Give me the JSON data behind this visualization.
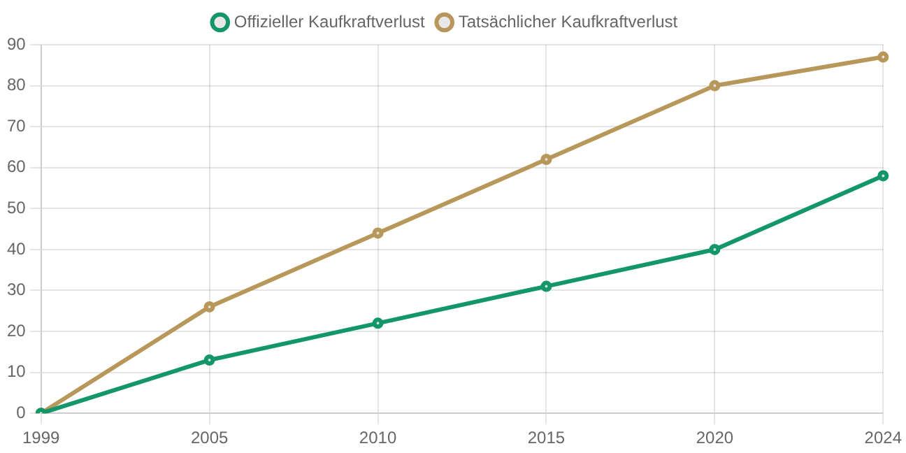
{
  "chart_data": {
    "type": "line",
    "categories": [
      "1999",
      "2005",
      "2010",
      "2015",
      "2020",
      "2024"
    ],
    "series": [
      {
        "name": "Offizieller Kaufkraftverlust",
        "color": "#13976a",
        "values": [
          0,
          13,
          22,
          31,
          40,
          58
        ]
      },
      {
        "name": "Tatsächlicher Kaufkraftverlust",
        "color": "#b8975a",
        "values": [
          0,
          26,
          44,
          62,
          80,
          87
        ]
      }
    ],
    "ylim": [
      0,
      90
    ],
    "yticks": [
      0,
      10,
      20,
      30,
      40,
      50,
      60,
      70,
      80,
      90
    ],
    "grid": true,
    "legend": "top",
    "marker": "circle",
    "line_style": "solid"
  }
}
